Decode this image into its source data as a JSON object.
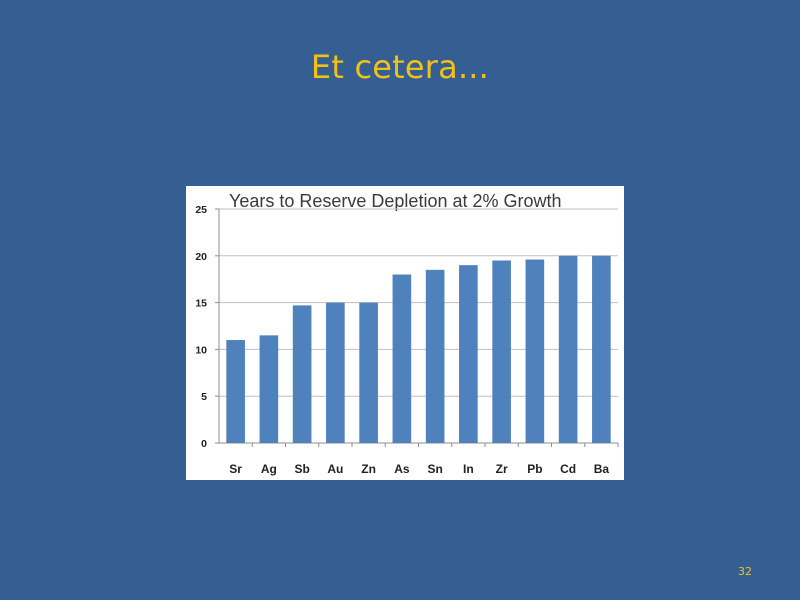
{
  "slide": {
    "title": "Et cetera...",
    "page_number": "32"
  },
  "colors": {
    "background": "#355f92",
    "title": "#f2c118",
    "bar": "#4f81bd",
    "gridline": "#bfbfbf"
  },
  "chart_data": {
    "type": "bar",
    "title": "Years to Reserve Depletion at 2% Growth",
    "xlabel": "",
    "ylabel": "",
    "categories": [
      "Sr",
      "Ag",
      "Sb",
      "Au",
      "Zn",
      "As",
      "Sn",
      "In",
      "Zr",
      "Pb",
      "Cd",
      "Ba"
    ],
    "values": [
      11,
      11.5,
      14.7,
      15,
      15,
      18,
      18.5,
      19,
      19.5,
      19.6,
      20,
      20
    ],
    "ylim": [
      0,
      25
    ],
    "yticks": [
      0,
      5,
      10,
      15,
      20,
      25
    ],
    "grid": true,
    "legend": "none"
  }
}
